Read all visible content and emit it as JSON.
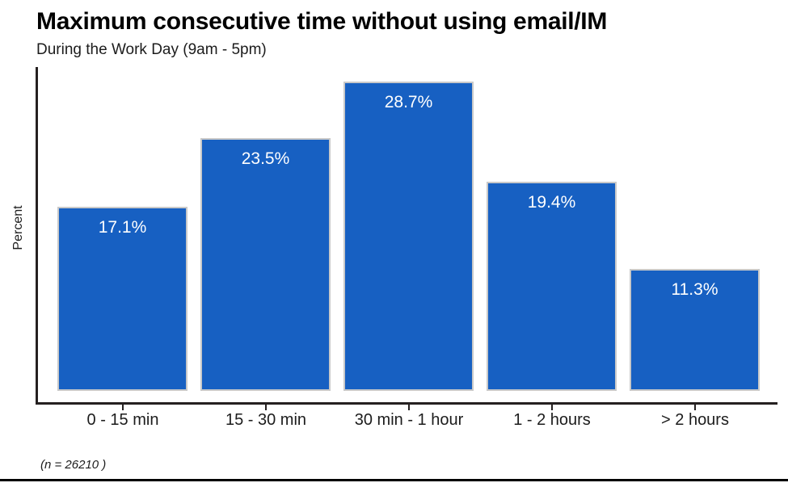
{
  "chart": {
    "title": "Maximum consecutive time without using email/IM",
    "subtitle": "During the Work Day (9am - 5pm)",
    "ylabel": "Percent",
    "footnote": "(n = 26210 )",
    "colors": {
      "bar_fill": "#1760C2",
      "bar_border": "#C9C9C9",
      "bar_label_text": "#FFFFFF",
      "axis": "#252020",
      "title_text": "#000000",
      "body_text": "#1C1C1C",
      "background": "#FFFFFF"
    }
  },
  "chart_data": {
    "type": "bar",
    "title": "Maximum consecutive time without using email/IM",
    "subtitle": "During the Work Day (9am - 5pm)",
    "xlabel": "",
    "ylabel": "Percent",
    "categories": [
      "0 - 15 min",
      "15 - 30 min",
      "30 min - 1 hour",
      "1 - 2 hours",
      "> 2 hours"
    ],
    "values": [
      17.1,
      23.5,
      28.7,
      19.4,
      11.3
    ],
    "value_labels": [
      "17.1%",
      "23.5%",
      "28.7%",
      "19.4%",
      "11.3%"
    ],
    "value_label_position": "inside-top",
    "ylim": [
      0,
      30
    ],
    "grid": false,
    "legend": false,
    "sample_size_note": "(n = 26210 )",
    "n": 26210
  }
}
